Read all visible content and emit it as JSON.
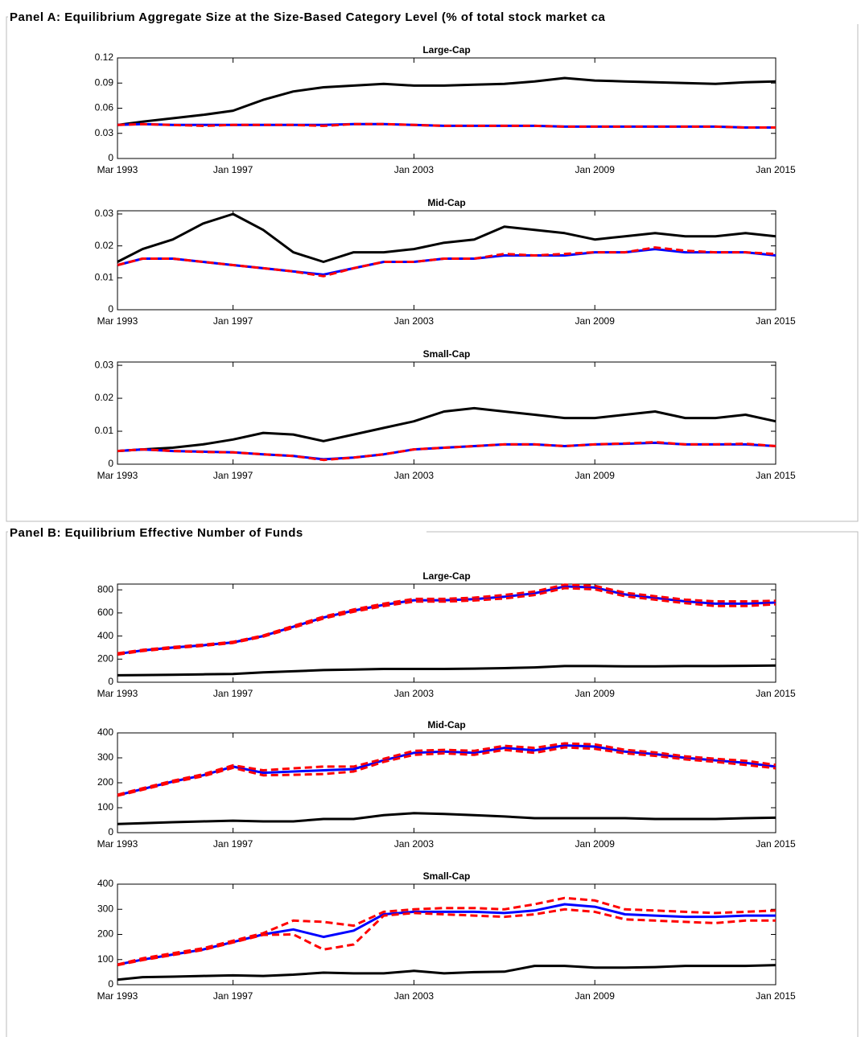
{
  "panels": [
    {
      "title": "Panel A: Equilibrium Aggregate Size at the Size-Based Category Level (% of total stock market ca"
    },
    {
      "title": "Panel B: Equilibrium Effective Number of Funds"
    }
  ],
  "chart_data": [
    {
      "type": "line",
      "title": "Large-Cap",
      "x": [
        "Mar 1993",
        "Jan 1994",
        "Jan 1995",
        "Jan 1996",
        "Jan 1997",
        "Jan 1998",
        "Jan 1999",
        "Jan 2000",
        "Jan 2001",
        "Jan 2002",
        "Jan 2003",
        "Jan 2004",
        "Jan 2005",
        "Jan 2006",
        "Jan 2007",
        "Jan 2008",
        "Jan 2009",
        "Jan 2010",
        "Jan 2011",
        "Jan 2012",
        "Jan 2013",
        "Jan 2014",
        "Jan 2015"
      ],
      "xlim": [
        "Mar 1993",
        "Jan 2015"
      ],
      "xticks": [
        "Mar 1993",
        "Jan 1997",
        "Jan 2003",
        "Jan 2009",
        "Jan 2015"
      ],
      "ylim": [
        0,
        0.12
      ],
      "yticks": [
        0,
        0.03,
        0.06,
        0.09,
        0.12
      ],
      "series": [
        {
          "color": "#000000",
          "dashed": false,
          "values": [
            0.04,
            0.044,
            0.048,
            0.052,
            0.057,
            0.07,
            0.08,
            0.085,
            0.087,
            0.089,
            0.087,
            0.087,
            0.088,
            0.089,
            0.092,
            0.096,
            0.093,
            0.092,
            0.091,
            0.09,
            0.089,
            0.091,
            0.092
          ]
        },
        {
          "color": "#0000ff",
          "dashed": false,
          "values": [
            0.04,
            0.041,
            0.04,
            0.04,
            0.04,
            0.04,
            0.04,
            0.04,
            0.041,
            0.041,
            0.04,
            0.039,
            0.039,
            0.039,
            0.039,
            0.038,
            0.038,
            0.038,
            0.038,
            0.038,
            0.038,
            0.037,
            0.037
          ]
        },
        {
          "color": "#ff0000",
          "dashed": true,
          "values": [
            0.04,
            0.041,
            0.04,
            0.039,
            0.04,
            0.04,
            0.04,
            0.039,
            0.041,
            0.041,
            0.04,
            0.039,
            0.039,
            0.039,
            0.039,
            0.038,
            0.038,
            0.038,
            0.038,
            0.038,
            0.038,
            0.037,
            0.037
          ]
        }
      ]
    },
    {
      "type": "line",
      "title": "Mid-Cap",
      "x": [
        "Mar 1993",
        "Jan 1994",
        "Jan 1995",
        "Jan 1996",
        "Jan 1997",
        "Jan 1998",
        "Jan 1999",
        "Jan 2000",
        "Jan 2001",
        "Jan 2002",
        "Jan 2003",
        "Jan 2004",
        "Jan 2005",
        "Jan 2006",
        "Jan 2007",
        "Jan 2008",
        "Jan 2009",
        "Jan 2010",
        "Jan 2011",
        "Jan 2012",
        "Jan 2013",
        "Jan 2014",
        "Jan 2015"
      ],
      "xlim": [
        "Mar 1993",
        "Jan 2015"
      ],
      "xticks": [
        "Mar 1993",
        "Jan 1997",
        "Jan 2003",
        "Jan 2009",
        "Jan 2015"
      ],
      "ylim": [
        0,
        0.031
      ],
      "yticks": [
        0,
        0.01,
        0.02,
        0.03
      ],
      "series": [
        {
          "color": "#000000",
          "dashed": false,
          "values": [
            0.015,
            0.019,
            0.022,
            0.027,
            0.03,
            0.025,
            0.018,
            0.015,
            0.018,
            0.018,
            0.019,
            0.021,
            0.022,
            0.026,
            0.025,
            0.024,
            0.022,
            0.023,
            0.024,
            0.023,
            0.023,
            0.024,
            0.023
          ]
        },
        {
          "color": "#0000ff",
          "dashed": false,
          "values": [
            0.014,
            0.016,
            0.016,
            0.015,
            0.014,
            0.013,
            0.012,
            0.011,
            0.013,
            0.015,
            0.015,
            0.016,
            0.016,
            0.017,
            0.017,
            0.017,
            0.018,
            0.018,
            0.019,
            0.018,
            0.018,
            0.018,
            0.017
          ]
        },
        {
          "color": "#ff0000",
          "dashed": true,
          "values": [
            0.014,
            0.016,
            0.016,
            0.015,
            0.014,
            0.013,
            0.012,
            0.0105,
            0.013,
            0.015,
            0.015,
            0.016,
            0.016,
            0.0175,
            0.017,
            0.0175,
            0.018,
            0.018,
            0.0195,
            0.0185,
            0.018,
            0.018,
            0.0175
          ]
        }
      ]
    },
    {
      "type": "line",
      "title": "Small-Cap",
      "x": [
        "Mar 1993",
        "Jan 1994",
        "Jan 1995",
        "Jan 1996",
        "Jan 1997",
        "Jan 1998",
        "Jan 1999",
        "Jan 2000",
        "Jan 2001",
        "Jan 2002",
        "Jan 2003",
        "Jan 2004",
        "Jan 2005",
        "Jan 2006",
        "Jan 2007",
        "Jan 2008",
        "Jan 2009",
        "Jan 2010",
        "Jan 2011",
        "Jan 2012",
        "Jan 2013",
        "Jan 2014",
        "Jan 2015"
      ],
      "xlim": [
        "Mar 1993",
        "Jan 2015"
      ],
      "xticks": [
        "Mar 1993",
        "Jan 1997",
        "Jan 2003",
        "Jan 2009",
        "Jan 2015"
      ],
      "ylim": [
        0,
        0.031
      ],
      "yticks": [
        0,
        0.01,
        0.02,
        0.03
      ],
      "series": [
        {
          "color": "#000000",
          "dashed": false,
          "values": [
            0.004,
            0.0045,
            0.005,
            0.006,
            0.0075,
            0.0095,
            0.009,
            0.007,
            0.009,
            0.011,
            0.013,
            0.016,
            0.017,
            0.016,
            0.015,
            0.014,
            0.014,
            0.015,
            0.016,
            0.014,
            0.014,
            0.015,
            0.013
          ]
        },
        {
          "color": "#0000ff",
          "dashed": false,
          "values": [
            0.004,
            0.0045,
            0.004,
            0.0038,
            0.0036,
            0.003,
            0.0025,
            0.0015,
            0.002,
            0.003,
            0.0045,
            0.005,
            0.0055,
            0.006,
            0.006,
            0.0055,
            0.006,
            0.0062,
            0.0065,
            0.006,
            0.006,
            0.006,
            0.0055
          ]
        },
        {
          "color": "#ff0000",
          "dashed": true,
          "values": [
            0.004,
            0.0045,
            0.004,
            0.0037,
            0.0036,
            0.003,
            0.0025,
            0.0013,
            0.002,
            0.003,
            0.0045,
            0.005,
            0.0055,
            0.006,
            0.006,
            0.0055,
            0.006,
            0.0063,
            0.0067,
            0.006,
            0.006,
            0.0062,
            0.0055
          ]
        }
      ]
    },
    {
      "type": "line",
      "title": "Large-Cap",
      "x": [
        "Mar 1993",
        "Jan 1994",
        "Jan 1995",
        "Jan 1996",
        "Jan 1997",
        "Jan 1998",
        "Jan 1999",
        "Jan 2000",
        "Jan 2001",
        "Jan 2002",
        "Jan 2003",
        "Jan 2004",
        "Jan 2005",
        "Jan 2006",
        "Jan 2007",
        "Jan 2008",
        "Jan 2009",
        "Jan 2010",
        "Jan 2011",
        "Jan 2012",
        "Jan 2013",
        "Jan 2014",
        "Jan 2015"
      ],
      "xlim": [
        "Mar 1993",
        "Jan 2015"
      ],
      "xticks": [
        "Mar 1993",
        "Jan 1997",
        "Jan 2003",
        "Jan 2009",
        "Jan 2015"
      ],
      "ylim": [
        0,
        850
      ],
      "yticks": [
        0,
        200,
        400,
        600,
        800
      ],
      "series": [
        {
          "color": "#000000",
          "dashed": false,
          "values": [
            60,
            62,
            65,
            68,
            72,
            85,
            95,
            105,
            110,
            115,
            115,
            115,
            118,
            122,
            128,
            140,
            140,
            138,
            138,
            140,
            140,
            142,
            145
          ]
        },
        {
          "color": "#0000ff",
          "dashed": false,
          "values": [
            245,
            275,
            300,
            320,
            345,
            400,
            480,
            560,
            620,
            670,
            710,
            710,
            720,
            740,
            770,
            830,
            820,
            760,
            730,
            700,
            680,
            680,
            690
          ]
        },
        {
          "color": "#ff0000",
          "dashed": true,
          "values": [
            250,
            280,
            305,
            325,
            350,
            405,
            488,
            568,
            630,
            680,
            722,
            722,
            732,
            755,
            785,
            845,
            835,
            775,
            745,
            715,
            700,
            700,
            705
          ]
        },
        {
          "color": "#ff0000",
          "dashed": true,
          "values": [
            240,
            270,
            295,
            315,
            340,
            395,
            472,
            552,
            610,
            660,
            698,
            698,
            708,
            725,
            755,
            815,
            805,
            745,
            715,
            685,
            660,
            660,
            675
          ]
        }
      ]
    },
    {
      "type": "line",
      "title": "Mid-Cap",
      "x": [
        "Mar 1993",
        "Jan 1994",
        "Jan 1995",
        "Jan 1996",
        "Jan 1997",
        "Jan 1998",
        "Jan 1999",
        "Jan 2000",
        "Jan 2001",
        "Jan 2002",
        "Jan 2003",
        "Jan 2004",
        "Jan 2005",
        "Jan 2006",
        "Jan 2007",
        "Jan 2008",
        "Jan 2009",
        "Jan 2010",
        "Jan 2011",
        "Jan 2012",
        "Jan 2013",
        "Jan 2014",
        "Jan 2015"
      ],
      "xlim": [
        "Mar 1993",
        "Jan 2015"
      ],
      "xticks": [
        "Mar 1993",
        "Jan 1997",
        "Jan 2003",
        "Jan 2009",
        "Jan 2015"
      ],
      "ylim": [
        0,
        400
      ],
      "yticks": [
        0,
        100,
        200,
        300,
        400
      ],
      "series": [
        {
          "color": "#000000",
          "dashed": false,
          "values": [
            35,
            38,
            42,
            45,
            48,
            45,
            45,
            55,
            55,
            70,
            78,
            75,
            70,
            65,
            58,
            58,
            58,
            58,
            55,
            55,
            55,
            58,
            60
          ]
        },
        {
          "color": "#0000ff",
          "dashed": false,
          "values": [
            150,
            175,
            205,
            230,
            265,
            240,
            245,
            250,
            255,
            290,
            320,
            325,
            320,
            340,
            330,
            350,
            345,
            325,
            315,
            300,
            290,
            280,
            265
          ]
        },
        {
          "color": "#ff0000",
          "dashed": true,
          "values": [
            152,
            178,
            208,
            234,
            270,
            250,
            258,
            265,
            265,
            296,
            328,
            332,
            328,
            348,
            340,
            358,
            354,
            332,
            322,
            306,
            296,
            288,
            272
          ]
        },
        {
          "color": "#ff0000",
          "dashed": true,
          "values": [
            148,
            172,
            202,
            226,
            260,
            230,
            232,
            235,
            245,
            284,
            312,
            318,
            312,
            332,
            320,
            342,
            336,
            318,
            308,
            294,
            284,
            272,
            258
          ]
        }
      ]
    },
    {
      "type": "line",
      "title": "Small-Cap",
      "x": [
        "Mar 1993",
        "Jan 1994",
        "Jan 1995",
        "Jan 1996",
        "Jan 1997",
        "Jan 1998",
        "Jan 1999",
        "Jan 2000",
        "Jan 2001",
        "Jan 2002",
        "Jan 2003",
        "Jan 2004",
        "Jan 2005",
        "Jan 2006",
        "Jan 2007",
        "Jan 2008",
        "Jan 2009",
        "Jan 2010",
        "Jan 2011",
        "Jan 2012",
        "Jan 2013",
        "Jan 2014",
        "Jan 2015"
      ],
      "xlim": [
        "Mar 1993",
        "Jan 2015"
      ],
      "xticks": [
        "Mar 1993",
        "Jan 1997",
        "Jan 2003",
        "Jan 2009",
        "Jan 2015"
      ],
      "ylim": [
        0,
        400
      ],
      "yticks": [
        0,
        100,
        200,
        300,
        400
      ],
      "series": [
        {
          "color": "#000000",
          "dashed": false,
          "values": [
            20,
            30,
            32,
            35,
            37,
            35,
            40,
            48,
            45,
            45,
            55,
            45,
            50,
            52,
            75,
            75,
            68,
            68,
            70,
            75,
            75,
            75,
            78
          ]
        },
        {
          "color": "#0000ff",
          "dashed": false,
          "values": [
            80,
            100,
            120,
            140,
            170,
            200,
            220,
            190,
            215,
            280,
            290,
            290,
            290,
            285,
            295,
            320,
            310,
            280,
            275,
            270,
            270,
            275,
            275
          ]
        },
        {
          "color": "#ff0000",
          "dashed": true,
          "values": [
            80,
            105,
            125,
            145,
            175,
            205,
            255,
            250,
            235,
            290,
            300,
            305,
            305,
            300,
            320,
            345,
            335,
            300,
            295,
            290,
            285,
            290,
            295
          ]
        },
        {
          "color": "#ff0000",
          "dashed": true,
          "values": [
            78,
            98,
            118,
            138,
            168,
            198,
            200,
            140,
            160,
            275,
            285,
            280,
            275,
            270,
            280,
            300,
            290,
            260,
            255,
            250,
            245,
            255,
            255
          ]
        }
      ]
    }
  ]
}
